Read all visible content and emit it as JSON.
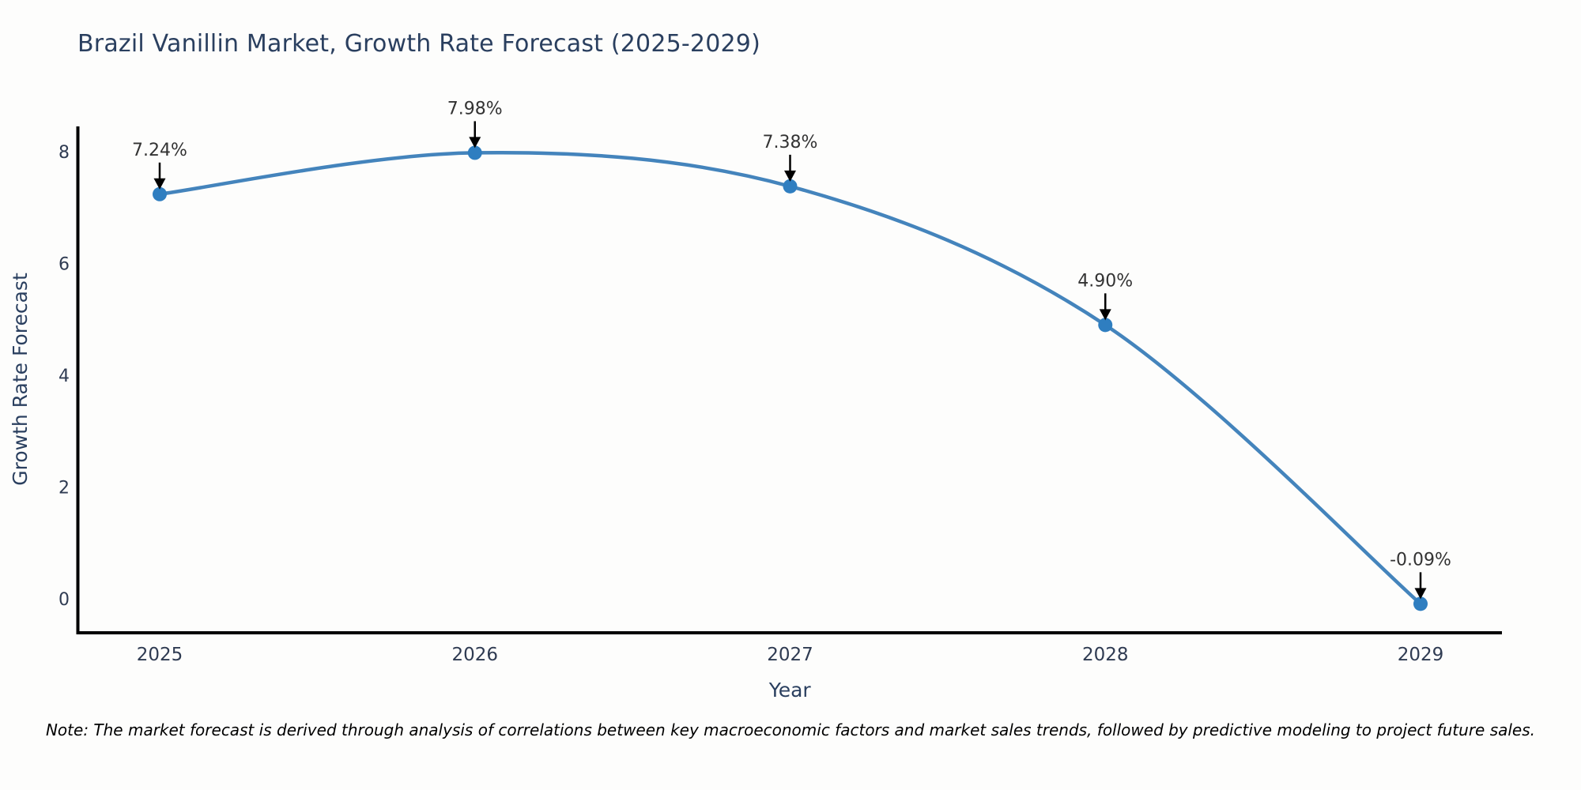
{
  "header": {
    "title": "Brazil Vanillin Market, Growth Rate Forecast (2025-2029)"
  },
  "footer": {
    "note": "Note: The market forecast is derived through analysis of correlations between key macroeconomic factors and market sales trends, followed by predictive modeling to project future sales."
  },
  "colors": {
    "background": "#fdfdfc",
    "line": "#4484bc",
    "marker": "#2f7ec0",
    "axis": "#000000",
    "heading_text": "#2a3f5f",
    "tick_text": "#2f3b52",
    "annotation_text": "#333333",
    "arrow": "#000000",
    "note_text": "#000000"
  },
  "chart_data": {
    "type": "line",
    "line_shape": "spline",
    "title": "Brazil Vanillin Market, Growth Rate Forecast (2025-2029)",
    "xlabel": "Year",
    "ylabel": "Growth Rate Forecast",
    "categories": [
      "2025",
      "2026",
      "2027",
      "2028",
      "2029"
    ],
    "values": [
      7.24,
      7.98,
      7.38,
      4.9,
      -0.09
    ],
    "point_labels": [
      "7.24%",
      "7.98%",
      "7.38%",
      "4.90%",
      "-0.09%"
    ],
    "yticks": [
      0,
      2,
      4,
      6,
      8
    ],
    "ylim": [
      -0.7,
      9.0
    ],
    "grid": false,
    "legend": false,
    "annotation_style": "arrow-down"
  }
}
